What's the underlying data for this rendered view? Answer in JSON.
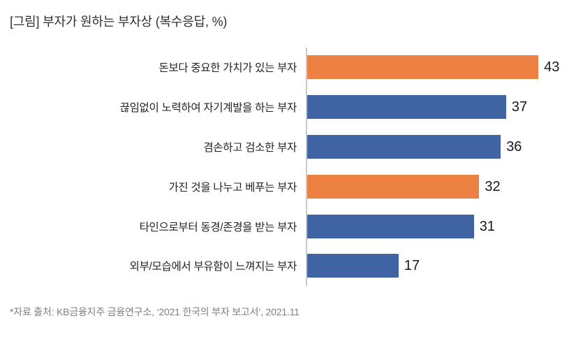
{
  "title": "[그림] 부자가 원하는 부자상 (복수응답, %)",
  "source": "*자료 출처: KB금융지주 금융연구소, ‘2021 한국의 부자 보고서’, 2021.11",
  "colors": {
    "highlight_orange": "#ED8043",
    "bar_blue": "#3F63A3",
    "axis_gray": "#C9C9C9",
    "title_text": "#2F2F2F",
    "source_text": "#7F7F7F"
  },
  "chart_data": {
    "type": "bar",
    "orientation": "horizontal",
    "title": "[그림] 부자가 원하는 부자상 (복수응답, %)",
    "categories": [
      "돈보다 중요한 가치가 있는 부자",
      "끊임없이 노력하여 자기계발을 하는 부자",
      "겸손하고 검소한 부자",
      "가진 것을 나누고 베푸는 부자",
      "타인으로부터 동경/존경을 받는 부자",
      "외부/모습에서 부유함이 느껴지는 부자"
    ],
    "values": [
      43,
      37,
      36,
      32,
      31,
      17
    ],
    "bar_color_roles": [
      "highlight_orange",
      "bar_blue",
      "bar_blue",
      "highlight_orange",
      "bar_blue",
      "bar_blue"
    ],
    "unit": "%",
    "multiple_response": true,
    "xlim": [
      0,
      45
    ],
    "grid": false,
    "legend": "none",
    "value_labels": "outside-end",
    "source": "*자료 출처: KB금융지주 금융연구소, ‘2021 한국의 부자 보고서’, 2021.11"
  }
}
